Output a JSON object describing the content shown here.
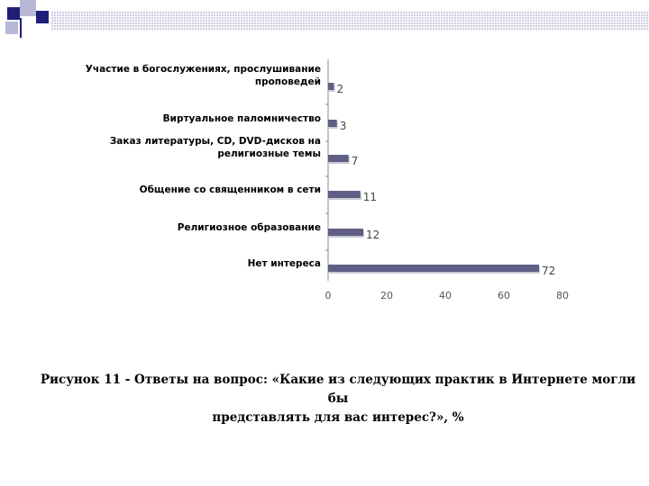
{
  "chart_data": {
    "type": "bar",
    "orientation": "horizontal",
    "categories": [
      [
        "Участие в богослужениях, прослушивание",
        "проповедей"
      ],
      [
        "Виртуальное паломничество"
      ],
      [
        "Заказ литературы, CD, DVD-дисков на",
        "религиозные темы"
      ],
      [
        "Общение со священником в сети"
      ],
      [
        "Религиозное образование"
      ],
      [
        "Нет интереса"
      ]
    ],
    "values": [
      2,
      3,
      7,
      11,
      12,
      72
    ],
    "xlim": [
      0,
      80
    ],
    "xticks": [
      "0",
      "20",
      "40",
      "60",
      "80"
    ],
    "bar_color": "#5f5f86",
    "grid": false
  },
  "caption": {
    "line1": "Рисунок 11 - Ответы на вопрос: «Какие из следующих практик в Интернете могли бы",
    "line2": "представлять для вас интерес?», %"
  },
  "colors": {
    "accent_dark": "#1f1f78",
    "accent_light": "#cfcfe3"
  }
}
